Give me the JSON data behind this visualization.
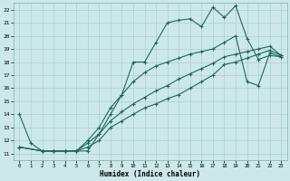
{
  "xlabel": "Humidex (Indice chaleur)",
  "bg_color": "#cde8e8",
  "grid_color": "#b0cfcf",
  "line_color": "#1a6b5a",
  "xlim": [
    -0.5,
    23.5
  ],
  "ylim": [
    10.5,
    22.5
  ],
  "xticks": [
    0,
    1,
    2,
    3,
    4,
    5,
    6,
    7,
    8,
    9,
    10,
    11,
    12,
    13,
    14,
    15,
    16,
    17,
    18,
    19,
    20,
    21,
    22,
    23
  ],
  "yticks": [
    11,
    12,
    13,
    14,
    15,
    16,
    17,
    18,
    19,
    20,
    21,
    22
  ],
  "line1_x": [
    0,
    1,
    2,
    3,
    4,
    5,
    6,
    7,
    8,
    9,
    10,
    11,
    12,
    13,
    14,
    15,
    16,
    17,
    18,
    19,
    20,
    21,
    22,
    23
  ],
  "line1_y": [
    14.0,
    11.8,
    11.2,
    11.2,
    11.2,
    11.2,
    11.2,
    12.5,
    14.0,
    15.5,
    18.0,
    18.0,
    19.5,
    21.0,
    21.2,
    21.3,
    20.7,
    22.2,
    21.4,
    22.3,
    19.8,
    18.2,
    18.5,
    18.4
  ],
  "line2_x": [
    0,
    2,
    3,
    4,
    5,
    6,
    7,
    8,
    9,
    10,
    11,
    12,
    13,
    14,
    15,
    16,
    17,
    18,
    19,
    20,
    21,
    22,
    23
  ],
  "line2_y": [
    11.5,
    11.2,
    11.2,
    11.2,
    11.2,
    11.5,
    12.0,
    13.0,
    13.5,
    14.0,
    14.5,
    14.8,
    15.2,
    15.5,
    16.0,
    16.5,
    17.0,
    17.8,
    18.0,
    18.3,
    18.6,
    18.9,
    18.5
  ],
  "line3_x": [
    0,
    2,
    3,
    4,
    5,
    6,
    7,
    8,
    9,
    10,
    11,
    12,
    13,
    14,
    15,
    16,
    17,
    18,
    19,
    20,
    21,
    22,
    23
  ],
  "line3_y": [
    11.5,
    11.2,
    11.2,
    11.2,
    11.2,
    11.8,
    12.5,
    13.5,
    14.2,
    14.8,
    15.3,
    15.8,
    16.2,
    16.7,
    17.1,
    17.5,
    17.9,
    18.4,
    18.6,
    18.8,
    19.0,
    19.2,
    18.5
  ],
  "line4_x": [
    0,
    2,
    3,
    4,
    5,
    6,
    7,
    8,
    9,
    10,
    11,
    12,
    13,
    14,
    15,
    16,
    17,
    18,
    19,
    20,
    21,
    22,
    23
  ],
  "line4_y": [
    11.5,
    11.2,
    11.2,
    11.2,
    11.2,
    12.0,
    13.0,
    14.5,
    15.5,
    16.5,
    17.2,
    17.7,
    18.0,
    18.3,
    18.6,
    18.8,
    19.0,
    19.5,
    20.0,
    16.5,
    16.2,
    18.7,
    18.4
  ]
}
